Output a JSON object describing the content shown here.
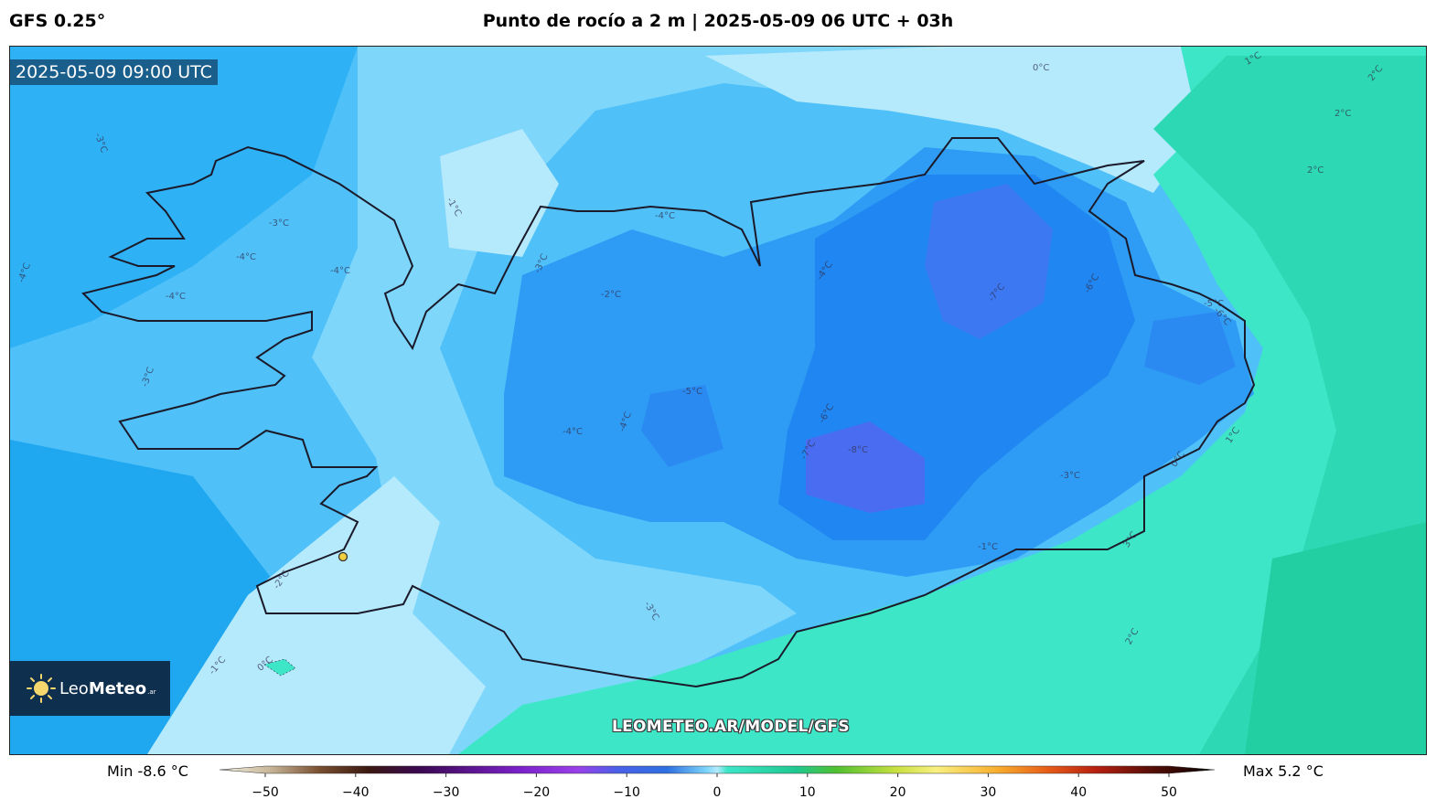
{
  "header": {
    "model": "GFS 0.25°",
    "title": "Punto de rocío a 2 m | 2025-05-09 06 UTC + 03h"
  },
  "map": {
    "valid_time": "2025-05-09 09:00 UTC",
    "watermark": "LEOMETEO.AR/MODEL/GFS",
    "contour_labels": [
      "-3°C",
      "-1°C",
      "-3°C",
      "-4°C",
      "-4°C",
      "-4°C",
      "-4°C",
      "-3°C",
      "-2°C",
      "-4°C",
      "-3°C",
      "-4°C",
      "-5°C",
      "-4°C",
      "-4°C",
      "-7°C",
      "-6°C",
      "-6°C",
      "-7°C",
      "-8°C",
      "-5°C",
      "-6°C",
      "-3°C",
      "-1°C",
      "0°C",
      "1°C",
      "2°C",
      "3°C",
      "0°C",
      "1°C",
      "2°C",
      "2°C",
      "2°C",
      "-3°C",
      "-2°C",
      "-1°C",
      "0°C"
    ]
  },
  "logo": {
    "prefix": "Leo",
    "bold": "Meteo",
    "suffix": ".ar"
  },
  "colorbar": {
    "min_label": "Min -8.6 °C",
    "max_label": "Max 5.2 °C",
    "ticks": [
      "−50",
      "−40",
      "−30",
      "−20",
      "−10",
      "0",
      "10",
      "20",
      "30",
      "40",
      "50"
    ],
    "range": [
      -50,
      50
    ]
  },
  "colors": {
    "accent_bg": "#0f2f4f",
    "cold_deep": "#5a6ef0",
    "cold_mid": "#2e9cf5",
    "cool": "#5ec8f8",
    "zero": "#b5e9fc",
    "warm": "#3ee6c8"
  }
}
